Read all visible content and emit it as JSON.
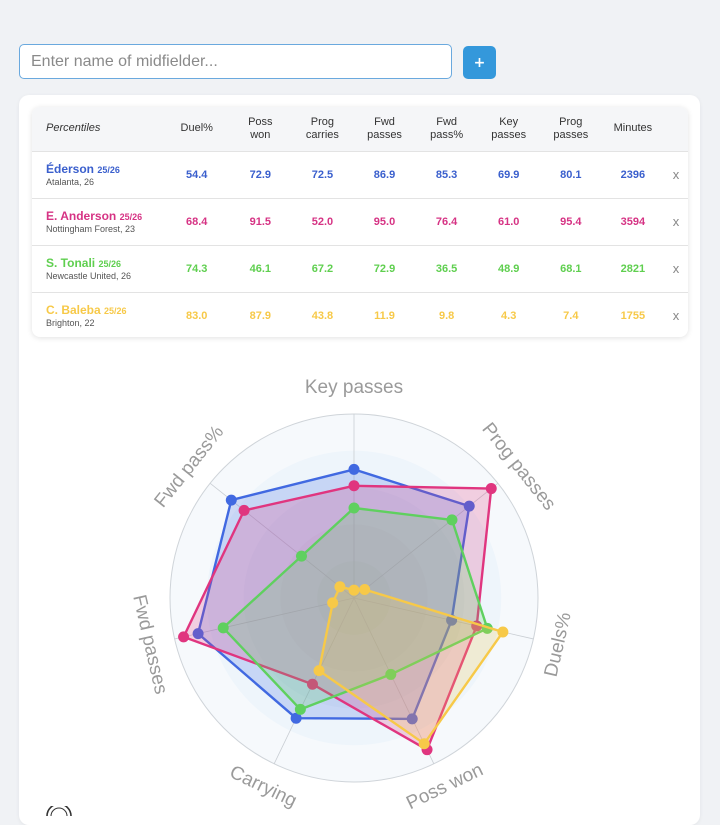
{
  "search": {
    "placeholder": "Enter name of midfielder...",
    "add_label": "+"
  },
  "table": {
    "headers": [
      [
        "Percentiles"
      ],
      [
        "Duel%"
      ],
      [
        "Poss",
        "won"
      ],
      [
        "Prog",
        "carries"
      ],
      [
        "Fwd",
        "passes"
      ],
      [
        "Fwd",
        "pass%"
      ],
      [
        "Key",
        "passes"
      ],
      [
        "Prog",
        "passes"
      ],
      [
        "Minutes"
      ]
    ],
    "remove_label": "x",
    "rows": [
      {
        "name": "Éderson",
        "season": "25/26",
        "club": "Atalanta, 26",
        "color": "#3a5fcd",
        "values": [
          "54.4",
          "72.9",
          "72.5",
          "86.9",
          "85.3",
          "69.9",
          "80.1",
          "2396"
        ]
      },
      {
        "name": "E. Anderson",
        "season": "25/26",
        "club": "Nottingham Forest, 23",
        "color": "#d63384",
        "values": [
          "68.4",
          "91.5",
          "52.0",
          "95.0",
          "76.4",
          "61.0",
          "95.4",
          "3594"
        ]
      },
      {
        "name": "S. Tonali",
        "season": "25/26",
        "club": "Newcastle United, 26",
        "color": "#5fcf4f",
        "values": [
          "74.3",
          "46.1",
          "67.2",
          "72.9",
          "36.5",
          "48.9",
          "68.1",
          "2821"
        ]
      },
      {
        "name": "C. Baleba",
        "season": "25/26",
        "club": "Brighton, 22",
        "color": "#f7c948",
        "values": [
          "83.0",
          "87.9",
          "43.8",
          "11.9",
          "9.8",
          "4.3",
          "7.4",
          "1755"
        ]
      }
    ]
  },
  "chart_data": {
    "type": "radar",
    "axes": [
      "Key passes",
      "Prog passes",
      "Duels%",
      "Poss won",
      "Carrying",
      "Fwd passes",
      "Fwd pass%"
    ],
    "range": [
      0,
      100
    ],
    "series": [
      {
        "name": "Éderson",
        "color": "#4169e1",
        "values": [
          69.9,
          80.1,
          54.4,
          72.9,
          72.5,
          86.9,
          85.3
        ]
      },
      {
        "name": "E. Anderson",
        "color": "#e0357f",
        "values": [
          61.0,
          95.4,
          68.4,
          91.5,
          52.0,
          95.0,
          76.4
        ]
      },
      {
        "name": "S. Tonali",
        "color": "#5fd05f",
        "values": [
          48.9,
          68.1,
          74.3,
          46.1,
          67.2,
          72.9,
          36.5
        ]
      },
      {
        "name": "C. Baleba",
        "color": "#f7c948",
        "values": [
          4.3,
          7.4,
          83.0,
          87.9,
          43.8,
          11.9,
          9.8
        ]
      }
    ]
  },
  "icons": {
    "footer": "info-icon"
  }
}
